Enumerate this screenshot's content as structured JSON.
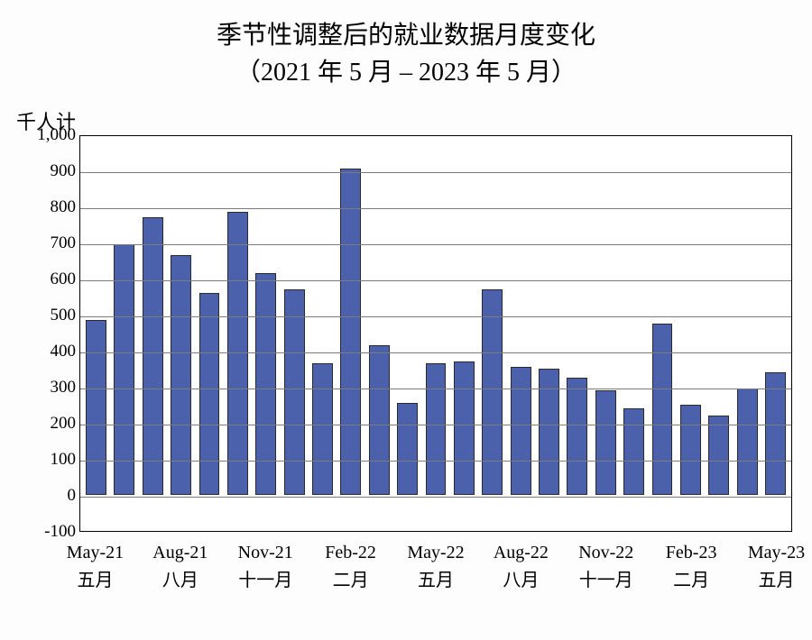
{
  "title": {
    "line1": "季节性调整后的就业数据月度变化",
    "line2": "（2021 年 5 月 – 2023 年 5 月）",
    "fontsize": 28
  },
  "chart": {
    "type": "bar",
    "y_unit_label": "千人计",
    "background_color": "#fdfdfd",
    "plot_background": "#ffffff",
    "grid_color": "#7b7b7b",
    "axis_color": "#000000",
    "bar_color": "#4b61ab",
    "bar_border_color": "#2a2a2a",
    "label_fontsize": 20,
    "tick_fontsize": 19,
    "ylim": [
      -100,
      1000
    ],
    "ytick_step": 100,
    "y_ticks": [
      {
        "v": 1000,
        "label": "1,000"
      },
      {
        "v": 900,
        "label": "900"
      },
      {
        "v": 800,
        "label": "800"
      },
      {
        "v": 700,
        "label": "700"
      },
      {
        "v": 600,
        "label": "600"
      },
      {
        "v": 500,
        "label": "500"
      },
      {
        "v": 400,
        "label": "400"
      },
      {
        "v": 300,
        "label": "300"
      },
      {
        "v": 200,
        "label": "200"
      },
      {
        "v": 100,
        "label": "100"
      },
      {
        "v": 0,
        "label": "0"
      },
      {
        "v": -100,
        "label": "-100"
      }
    ],
    "values": [
      485,
      695,
      770,
      665,
      560,
      785,
      615,
      570,
      365,
      905,
      415,
      255,
      365,
      370,
      570,
      355,
      350,
      325,
      290,
      240,
      475,
      250,
      220,
      295,
      340
    ],
    "x_major": [
      {
        "index": 0,
        "top": "May-21",
        "bottom": "五月"
      },
      {
        "index": 3,
        "top": "Aug-21",
        "bottom": "八月"
      },
      {
        "index": 6,
        "top": "Nov-21",
        "bottom": "十一月"
      },
      {
        "index": 9,
        "top": "Feb-22",
        "bottom": "二月"
      },
      {
        "index": 12,
        "top": "May-22",
        "bottom": "五月"
      },
      {
        "index": 15,
        "top": "Aug-22",
        "bottom": "八月"
      },
      {
        "index": 18,
        "top": "Nov-22",
        "bottom": "十一月"
      },
      {
        "index": 21,
        "top": "Feb-23",
        "bottom": "二月"
      },
      {
        "index": 24,
        "top": "May-23",
        "bottom": "五月"
      }
    ]
  }
}
